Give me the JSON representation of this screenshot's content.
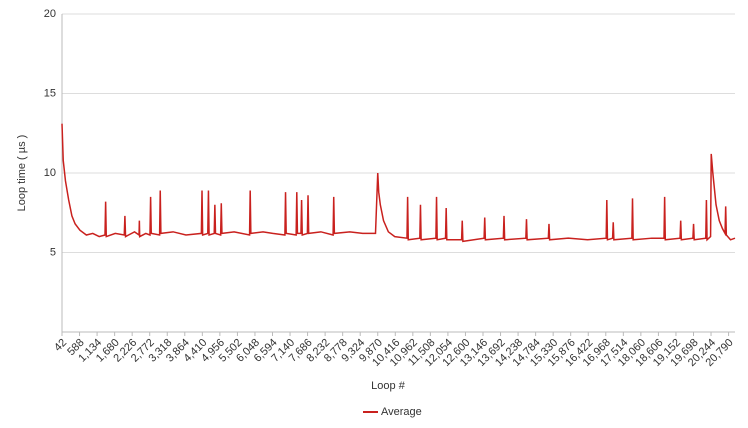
{
  "chart_data": {
    "type": "line",
    "x_label": "Loop #",
    "y_label": "Loop time ( µs )",
    "x": [
      42,
      80,
      150,
      250,
      350,
      450,
      600,
      800,
      1000,
      1200,
      1380,
      1400,
      1420,
      1700,
      1980,
      2000,
      2020,
      2300,
      2440,
      2450,
      2460,
      2650,
      2780,
      2800,
      2820,
      3080,
      3100,
      3120,
      3500,
      3900,
      4380,
      4400,
      4420,
      4580,
      4600,
      4620,
      4780,
      4800,
      4820,
      4980,
      5000,
      5020,
      5400,
      5880,
      5900,
      5920,
      6300,
      6600,
      6980,
      7000,
      7020,
      7330,
      7350,
      7370,
      7480,
      7500,
      7520,
      7680,
      7700,
      7720,
      8100,
      8480,
      8500,
      8520,
      9000,
      9400,
      9800,
      9870,
      9900,
      9950,
      10050,
      10200,
      10400,
      10780,
      10800,
      10820,
      11180,
      11200,
      11220,
      11680,
      11700,
      11720,
      11980,
      12000,
      12020,
      12480,
      12500,
      12520,
      13180,
      13200,
      13220,
      13780,
      13800,
      13820,
      14480,
      14500,
      14520,
      15180,
      15200,
      15220,
      15800,
      16400,
      16980,
      17000,
      17020,
      17180,
      17200,
      17220,
      17780,
      17800,
      17820,
      18400,
      18780,
      18800,
      18820,
      19280,
      19300,
      19320,
      19680,
      19700,
      19720,
      20080,
      20100,
      20120,
      20230,
      20250,
      20300,
      20400,
      20500,
      20600,
      20680,
      20700,
      20720,
      20850,
      20990
    ],
    "series": [
      {
        "name": "Average",
        "color": "#c9211e",
        "values": [
          13.1,
          10.8,
          9.5,
          8.3,
          7.3,
          6.8,
          6.4,
          6.1,
          6.2,
          6.0,
          6.1,
          8.2,
          6.0,
          6.2,
          6.1,
          7.3,
          6.0,
          6.3,
          6.1,
          7.0,
          6.0,
          6.2,
          6.1,
          8.5,
          6.2,
          6.1,
          8.9,
          6.2,
          6.3,
          6.1,
          6.2,
          8.9,
          6.1,
          6.2,
          8.9,
          6.1,
          6.2,
          8.0,
          6.2,
          6.1,
          8.1,
          6.2,
          6.3,
          6.1,
          8.9,
          6.2,
          6.3,
          6.2,
          6.1,
          8.8,
          6.2,
          6.1,
          8.8,
          6.2,
          6.2,
          8.3,
          6.1,
          6.2,
          8.6,
          6.2,
          6.3,
          6.1,
          8.5,
          6.2,
          6.3,
          6.2,
          6.2,
          10.0,
          8.8,
          8.0,
          7.0,
          6.3,
          6.0,
          5.9,
          8.5,
          5.8,
          5.9,
          8.0,
          5.8,
          5.9,
          8.5,
          5.8,
          5.9,
          7.8,
          5.8,
          5.8,
          7.0,
          5.7,
          5.9,
          7.2,
          5.8,
          5.9,
          7.3,
          5.8,
          5.9,
          7.1,
          5.8,
          5.9,
          6.8,
          5.8,
          5.9,
          5.8,
          5.9,
          8.3,
          5.8,
          5.9,
          6.9,
          5.8,
          5.9,
          8.4,
          5.8,
          5.9,
          5.9,
          8.5,
          5.8,
          5.9,
          7.0,
          5.8,
          5.9,
          6.8,
          5.8,
          5.9,
          8.3,
          5.8,
          6.0,
          11.2,
          10.0,
          8.0,
          7.0,
          6.5,
          6.2,
          7.9,
          6.1,
          5.8,
          5.9
        ]
      }
    ],
    "xlim": [
      42,
      20990
    ],
    "xticks": [
      42,
      588,
      {
        "value": 1134,
        "label": "1,134"
      },
      {
        "value": 1680,
        "label": "1,680"
      },
      {
        "value": 2226,
        "label": "2,226"
      },
      {
        "value": 2772,
        "label": "2,772"
      },
      {
        "value": 3318,
        "label": "3,318"
      },
      {
        "value": 3864,
        "label": "3,864"
      },
      {
        "value": 4410,
        "label": "4,410"
      },
      {
        "value": 4956,
        "label": "4,956"
      },
      {
        "value": 5502,
        "label": "5,502"
      },
      {
        "value": 6048,
        "label": "6,048"
      },
      {
        "value": 6594,
        "label": "6,594"
      },
      {
        "value": 7140,
        "label": "7,140"
      },
      {
        "value": 7686,
        "label": "7,686"
      },
      {
        "value": 8232,
        "label": "8,232"
      },
      {
        "value": 8778,
        "label": "8,778"
      },
      {
        "value": 9324,
        "label": "9,324"
      },
      {
        "value": 9870,
        "label": "9,870"
      },
      {
        "value": 10416,
        "label": "10,416"
      },
      {
        "value": 10962,
        "label": "10,962"
      },
      {
        "value": 11508,
        "label": "11,508"
      },
      {
        "value": 12054,
        "label": "12,054"
      },
      {
        "value": 12600,
        "label": "12,600"
      },
      {
        "value": 13146,
        "label": "13,146"
      },
      {
        "value": 13692,
        "label": "13,692"
      },
      {
        "value": 14238,
        "label": "14,238"
      },
      {
        "value": 14784,
        "label": "14,784"
      },
      {
        "value": 15330,
        "label": "15,330"
      },
      {
        "value": 15876,
        "label": "15,876"
      },
      {
        "value": 16422,
        "label": "16,422"
      },
      {
        "value": 16968,
        "label": "16,968"
      },
      {
        "value": 17514,
        "label": "17,514"
      },
      {
        "value": 18060,
        "label": "18,060"
      },
      {
        "value": 18606,
        "label": "18,606"
      },
      {
        "value": 19152,
        "label": "19,152"
      },
      {
        "value": 19698,
        "label": "19,698"
      },
      {
        "value": 20244,
        "label": "20,244"
      },
      {
        "value": 20790,
        "label": "20,790"
      }
    ],
    "ylim": [
      0,
      20
    ],
    "yticks": [
      5,
      10,
      15,
      20
    ],
    "grid": true,
    "legend": "bottom"
  }
}
